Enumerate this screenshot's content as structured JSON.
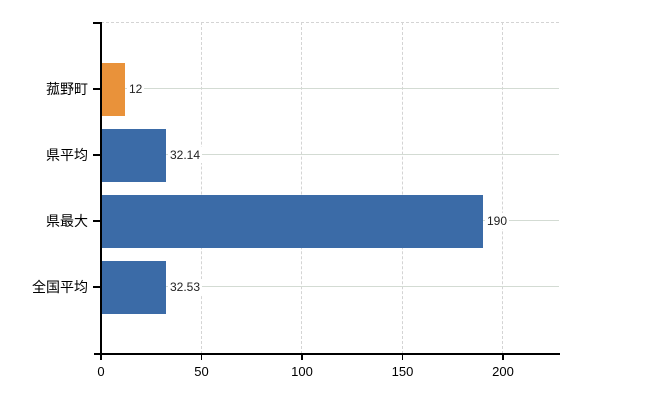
{
  "chart_data": {
    "type": "bar",
    "orientation": "horizontal",
    "title": "",
    "xlabel": "",
    "ylabel": "",
    "categories": [
      "菰野町",
      "県平均",
      "県最大",
      "全国平均"
    ],
    "values": [
      12,
      32.14,
      190,
      32.53
    ],
    "value_labels": [
      "12",
      "32.14",
      "190",
      "32.53"
    ],
    "bar_colors": [
      "#e9923a",
      "#3b6ba7",
      "#3b6ba7",
      "#3b6ba7"
    ],
    "x_ticks": [
      0,
      50,
      100,
      150,
      200
    ],
    "x_tick_labels": [
      "0",
      "50",
      "100",
      "150",
      "200"
    ],
    "xlim": [
      0,
      228
    ],
    "grid": {
      "vertical_gridlines": "dashed",
      "horizontal_category_lines": "solid",
      "top_border": "dashed",
      "legend": "none"
    },
    "colors": {
      "axis": "#000000",
      "gridline": "#d4d4d4",
      "category_line": "#d3dbd3",
      "value_label": "#222222",
      "tick_label": "#000000",
      "category_label": "#000000",
      "background": "#ffffff",
      "highlight_bar": "#e9923a",
      "default_bar": "#3b6ba7"
    }
  }
}
